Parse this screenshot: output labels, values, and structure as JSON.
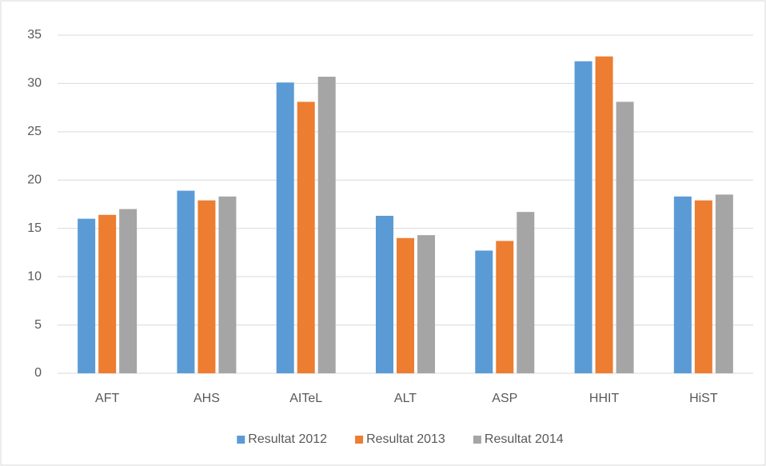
{
  "chart_data": {
    "type": "bar",
    "categories": [
      "AFT",
      "AHS",
      "AITeL",
      "ALT",
      "ASP",
      "HHIT",
      "HiST"
    ],
    "series": [
      {
        "name": "Resultat 2012",
        "color": "#5b9bd5",
        "values": [
          16.0,
          18.9,
          30.1,
          16.3,
          12.7,
          32.3,
          18.3
        ]
      },
      {
        "name": "Resultat 2013",
        "color": "#ed7d31",
        "values": [
          16.4,
          17.9,
          28.1,
          14.0,
          13.7,
          32.8,
          17.9
        ]
      },
      {
        "name": "Resultat 2014",
        "color": "#a5a5a5",
        "values": [
          17.0,
          18.3,
          30.7,
          14.3,
          16.7,
          28.1,
          18.5
        ]
      }
    ],
    "ylim": [
      0,
      35
    ],
    "yticks": [
      0,
      5,
      10,
      15,
      20,
      25,
      30,
      35
    ],
    "grid": true,
    "legend": "bottom"
  }
}
